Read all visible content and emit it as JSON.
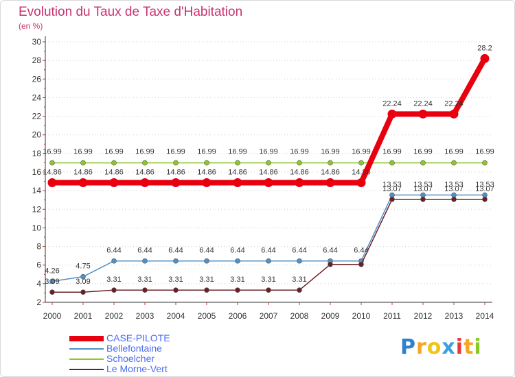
{
  "chart_data": {
    "type": "line",
    "title": "Evolution du Taux de Taxe d'Habitation",
    "ylabel": "(en %)",
    "xlabel": "",
    "ylim": [
      2,
      30
    ],
    "yticks": [
      2,
      4,
      6,
      8,
      10,
      12,
      14,
      16,
      18,
      20,
      22,
      24,
      26,
      28,
      30
    ],
    "categories": [
      "2000",
      "2001",
      "2002",
      "2003",
      "2004",
      "2005",
      "2006",
      "2007",
      "2008",
      "2009",
      "2010",
      "2011",
      "2012",
      "2013",
      "2014"
    ],
    "series": [
      {
        "name": "CASE-PILOTE",
        "color": "#e8000f",
        "values": [
          14.86,
          14.86,
          14.86,
          14.86,
          14.86,
          14.86,
          14.86,
          14.86,
          14.86,
          14.86,
          14.86,
          22.24,
          22.24,
          22.24,
          28.2
        ],
        "labels": [
          "14.86",
          "14.86",
          "14.86",
          "14.86",
          "14.86",
          "14.86",
          "14.86",
          "14.86",
          "14.86",
          "14.86",
          "14.86",
          "22.24",
          "22.24",
          "22.24",
          "28.2"
        ]
      },
      {
        "name": "Bellefontaine",
        "color": "#4f90c6",
        "values": [
          4.26,
          4.75,
          6.44,
          6.44,
          6.44,
          6.44,
          6.44,
          6.44,
          6.44,
          6.44,
          6.44,
          13.53,
          13.53,
          13.53,
          13.53
        ],
        "labels": [
          "4.26",
          "4.75",
          "6.44",
          "6.44",
          "6.44",
          "6.44",
          "6.44",
          "6.44",
          "6.44",
          "6.44",
          "6.44",
          "13.53",
          "13.53",
          "13.53",
          "13.53"
        ]
      },
      {
        "name": "Schoelcher",
        "color": "#8ac926",
        "values": [
          16.99,
          16.99,
          16.99,
          16.99,
          16.99,
          16.99,
          16.99,
          16.99,
          16.99,
          16.99,
          16.99,
          16.99,
          16.99,
          16.99,
          16.99
        ],
        "labels": [
          "16.99",
          "16.99",
          "16.99",
          "16.99",
          "16.99",
          "16.99",
          "16.99",
          "16.99",
          "16.99",
          "16.99",
          "16.99",
          "16.99",
          "16.99",
          "16.99",
          "16.99"
        ]
      },
      {
        "name": "Le Morne-Vert",
        "color": "#6b1f24",
        "values": [
          3.09,
          3.09,
          3.31,
          3.31,
          3.31,
          3.31,
          3.31,
          3.31,
          3.31,
          6.07,
          6.07,
          13.07,
          13.07,
          13.07,
          13.07
        ],
        "labels": [
          "3.09",
          "3.09",
          "3.31",
          "3.31",
          "3.31",
          "3.31",
          "3.31",
          "3.31",
          "3.31",
          "",
          "",
          "13.07",
          "13.07",
          "13.07",
          "13.07"
        ]
      }
    ],
    "legend": "bottom-left",
    "grid": "horizontal-dotted"
  },
  "legend_text_color": "#4a6cf0",
  "logo": {
    "text": "Proxiti",
    "letters": [
      "P",
      "r",
      "o",
      "x",
      "i",
      "t",
      "i"
    ],
    "colors": [
      "#2f80d0",
      "#f5a623",
      "#f0c419",
      "#3aa0e0",
      "#e33a3a",
      "#f5a623",
      "#8ac926"
    ]
  }
}
